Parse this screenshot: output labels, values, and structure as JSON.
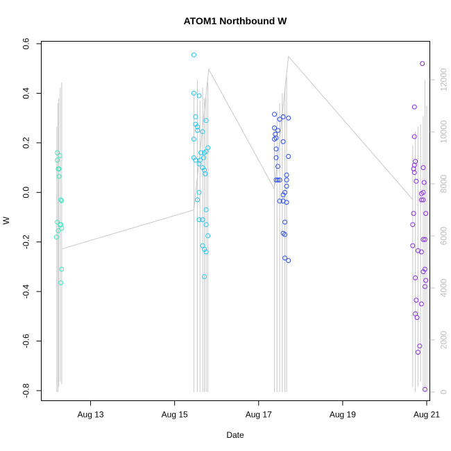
{
  "chart_data": {
    "type": "scatter",
    "title": "ATOM1 Northbound W",
    "xlabel": "Date",
    "ylabel": "W",
    "xlim": [
      "2022-08-12 00:00",
      "2022-08-21 00:00"
    ],
    "ylim": [
      -0.8,
      0.6
    ],
    "x_ticks": [
      "Aug 13",
      "Aug 15",
      "Aug 17",
      "Aug 19",
      "Aug 21"
    ],
    "x_tick_positions": [
      "2022-08-13 00:00",
      "2022-08-15 00:00",
      "2022-08-17 00:00",
      "2022-08-19 00:00",
      "2022-08-21 00:00"
    ],
    "y_ticks": [
      "-0.8",
      "-0.6",
      "-0.4",
      "-0.2",
      "0.0",
      "0.2",
      "0.4",
      "0.6"
    ],
    "y_tick_values": [
      -0.8,
      -0.6,
      -0.4,
      -0.2,
      0.0,
      0.2,
      0.4,
      0.6
    ],
    "y2_ticks": [
      "0",
      "2000",
      "4000",
      "6000",
      "8000",
      "10000",
      "12000"
    ],
    "y2_tick_values": [
      0,
      2000,
      4000,
      6000,
      8000,
      10000,
      12000
    ],
    "y2lim": [
      0,
      12000
    ],
    "grid": false,
    "colors": {
      "line": "#c8c8c8",
      "axis": "#000000",
      "right_axis": "#bdbdbd",
      "group1": "#3fe8c0",
      "group2": "#22c6ee",
      "group3": "#2a4df0",
      "group4": "#8a2be2"
    },
    "series": [
      {
        "color": "#3fe8c0",
        "points": [
          {
            "x": "2022-08-12 05:00",
            "y": 0.16
          },
          {
            "x": "2022-08-12 05:00",
            "y": 0.13
          },
          {
            "x": "2022-08-12 05:30",
            "y": 0.095
          },
          {
            "x": "2022-08-12 06:00",
            "y": 0.065
          },
          {
            "x": "2022-08-12 05:00",
            "y": -0.12
          },
          {
            "x": "2022-08-12 06:30",
            "y": -0.13
          },
          {
            "x": "2022-08-12 05:30",
            "y": -0.155
          },
          {
            "x": "2022-08-12 04:30",
            "y": -0.18
          },
          {
            "x": "2022-08-12 06:00",
            "y": 0.095
          },
          {
            "x": "2022-08-12 06:30",
            "y": 0.148
          },
          {
            "x": "2022-08-12 07:00",
            "y": -0.03
          },
          {
            "x": "2022-08-12 07:30",
            "y": -0.034
          },
          {
            "x": "2022-08-12 07:00",
            "y": -0.13
          },
          {
            "x": "2022-08-12 07:30",
            "y": -0.145
          },
          {
            "x": "2022-08-12 07:30",
            "y": -0.31
          },
          {
            "x": "2022-08-12 07:00",
            "y": -0.365
          }
        ]
      },
      {
        "color": "#22c6ee",
        "points": [
          {
            "x": "2022-08-15 11:00",
            "y": 0.555
          },
          {
            "x": "2022-08-15 11:00",
            "y": 0.4
          },
          {
            "x": "2022-08-15 14:00",
            "y": 0.39
          },
          {
            "x": "2022-08-15 12:00",
            "y": 0.305
          },
          {
            "x": "2022-08-15 12:00",
            "y": 0.275
          },
          {
            "x": "2022-08-15 13:00",
            "y": 0.265
          },
          {
            "x": "2022-08-15 13:00",
            "y": 0.25
          },
          {
            "x": "2022-08-15 16:00",
            "y": 0.245
          },
          {
            "x": "2022-08-15 18:00",
            "y": 0.29
          },
          {
            "x": "2022-08-15 11:00",
            "y": 0.215
          },
          {
            "x": "2022-08-15 15:00",
            "y": 0.16
          },
          {
            "x": "2022-08-15 17:00",
            "y": 0.16
          },
          {
            "x": "2022-08-15 18:00",
            "y": 0.165
          },
          {
            "x": "2022-08-15 19:00",
            "y": 0.18
          },
          {
            "x": "2022-08-15 11:00",
            "y": 0.14
          },
          {
            "x": "2022-08-15 12:00",
            "y": 0.13
          },
          {
            "x": "2022-08-15 14:30",
            "y": 0.13
          },
          {
            "x": "2022-08-15 16:30",
            "y": 0.14
          },
          {
            "x": "2022-08-15 14:00",
            "y": 0.115
          },
          {
            "x": "2022-08-15 16:00",
            "y": 0.1
          },
          {
            "x": "2022-08-15 17:00",
            "y": 0.09
          },
          {
            "x": "2022-08-15 17:30",
            "y": 0.075
          },
          {
            "x": "2022-08-15 14:00",
            "y": 0.0
          },
          {
            "x": "2022-08-15 13:00",
            "y": -0.03
          },
          {
            "x": "2022-08-15 18:00",
            "y": -0.07
          },
          {
            "x": "2022-08-15 14:00",
            "y": -0.11
          },
          {
            "x": "2022-08-15 16:00",
            "y": -0.11
          },
          {
            "x": "2022-08-15 18:00",
            "y": -0.13
          },
          {
            "x": "2022-08-15 19:00",
            "y": -0.175
          },
          {
            "x": "2022-08-15 16:00",
            "y": -0.215
          },
          {
            "x": "2022-08-15 17:00",
            "y": -0.23
          },
          {
            "x": "2022-08-15 18:00",
            "y": -0.24
          },
          {
            "x": "2022-08-15 17:00",
            "y": -0.34
          }
        ]
      },
      {
        "color": "#2a4df0",
        "points": [
          {
            "x": "2022-08-17 09:00",
            "y": 0.315
          },
          {
            "x": "2022-08-17 14:00",
            "y": 0.305
          },
          {
            "x": "2022-08-17 17:00",
            "y": 0.3
          },
          {
            "x": "2022-08-17 12:00",
            "y": 0.295
          },
          {
            "x": "2022-08-17 09:00",
            "y": 0.26
          },
          {
            "x": "2022-08-17 11:00",
            "y": 0.25
          },
          {
            "x": "2022-08-17 09:30",
            "y": 0.235
          },
          {
            "x": "2022-08-17 10:00",
            "y": 0.22
          },
          {
            "x": "2022-08-17 09:00",
            "y": 0.215
          },
          {
            "x": "2022-08-17 14:00",
            "y": 0.205
          },
          {
            "x": "2022-08-17 10:00",
            "y": 0.175
          },
          {
            "x": "2022-08-17 17:00",
            "y": 0.145
          },
          {
            "x": "2022-08-17 10:00",
            "y": 0.14
          },
          {
            "x": "2022-08-17 11:00",
            "y": 0.105
          },
          {
            "x": "2022-08-17 16:00",
            "y": 0.07
          },
          {
            "x": "2022-08-17 10:00",
            "y": 0.05
          },
          {
            "x": "2022-08-17 11:00",
            "y": 0.05
          },
          {
            "x": "2022-08-17 12:00",
            "y": 0.05
          },
          {
            "x": "2022-08-17 16:00",
            "y": 0.05
          },
          {
            "x": "2022-08-17 16:00",
            "y": 0.025
          },
          {
            "x": "2022-08-17 15:00",
            "y": 0.0
          },
          {
            "x": "2022-08-17 14:00",
            "y": -0.01
          },
          {
            "x": "2022-08-17 12:00",
            "y": -0.035
          },
          {
            "x": "2022-08-17 14:00",
            "y": -0.035
          },
          {
            "x": "2022-08-17 16:00",
            "y": -0.04
          },
          {
            "x": "2022-08-17 15:00",
            "y": -0.12
          },
          {
            "x": "2022-08-17 14:00",
            "y": -0.165
          },
          {
            "x": "2022-08-17 15:00",
            "y": -0.17
          },
          {
            "x": "2022-08-17 15:00",
            "y": -0.265
          },
          {
            "x": "2022-08-17 17:00",
            "y": -0.275
          }
        ]
      },
      {
        "color": "#8a2be2",
        "points": [
          {
            "x": "2022-08-20 17:00",
            "y": 0.345
          },
          {
            "x": "2022-08-20 17:00",
            "y": 0.225
          },
          {
            "x": "2022-08-20 17:30",
            "y": 0.125
          },
          {
            "x": "2022-08-20 17:00",
            "y": 0.11
          },
          {
            "x": "2022-08-20 16:30",
            "y": 0.095
          },
          {
            "x": "2022-08-20 17:00",
            "y": 0.08
          },
          {
            "x": "2022-08-20 18:00",
            "y": 0.045
          },
          {
            "x": "2022-08-20 22:00",
            "y": 0.1
          },
          {
            "x": "2022-08-20 22:30",
            "y": 0.04
          },
          {
            "x": "2022-08-20 22:00",
            "y": 0.0
          },
          {
            "x": "2022-08-20 21:00",
            "y": -0.005
          },
          {
            "x": "2022-08-20 21:00",
            "y": -0.03
          },
          {
            "x": "2022-08-20 22:00",
            "y": -0.03
          },
          {
            "x": "2022-08-20 16:30",
            "y": -0.085
          },
          {
            "x": "2022-08-20 16:00",
            "y": -0.13
          },
          {
            "x": "2022-08-20 22:00",
            "y": -0.19
          },
          {
            "x": "2022-08-20 23:30",
            "y": -0.085
          },
          {
            "x": "2022-08-20 16:00",
            "y": -0.215
          },
          {
            "x": "2022-08-20 19:00",
            "y": -0.235
          },
          {
            "x": "2022-08-20 21:00",
            "y": -0.24
          },
          {
            "x": "2022-08-20 23:00",
            "y": -0.19
          },
          {
            "x": "2022-08-20 22:00",
            "y": -0.32
          },
          {
            "x": "2022-08-20 23:00",
            "y": -0.31
          },
          {
            "x": "2022-08-20 23:30",
            "y": -0.355
          },
          {
            "x": "2022-08-20 17:30",
            "y": -0.345
          },
          {
            "x": "2022-08-20 23:00",
            "y": -0.38
          },
          {
            "x": "2022-08-20 18:00",
            "y": -0.435
          },
          {
            "x": "2022-08-20 21:00",
            "y": -0.45
          },
          {
            "x": "2022-08-20 17:30",
            "y": -0.49
          },
          {
            "x": "2022-08-20 18:30",
            "y": -0.505
          },
          {
            "x": "2022-08-20 20:00",
            "y": -0.62
          },
          {
            "x": "2022-08-20 19:00",
            "y": -0.645
          },
          {
            "x": "2022-08-20 21:30",
            "y": 0.52
          },
          {
            "x": "2022-08-20 23:00",
            "y": -0.795
          }
        ]
      }
    ],
    "secondary_line": {
      "color": "#c8c8c8",
      "axis": "right",
      "segments": [
        {
          "x": "2022-08-12 04:40",
          "y": [
            0,
            10200
          ]
        },
        {
          "x": "2022-08-12 05:20",
          "y": [
            0,
            11100
          ]
        },
        {
          "x": "2022-08-12 05:50",
          "y": [
            200,
            11300
          ]
        },
        {
          "x": "2022-08-12 06:40",
          "y": [
            400,
            11700
          ]
        },
        {
          "x": "2022-08-12 07:30",
          "y": [
            300,
            11900
          ]
        },
        {
          "x": "2022-08-15 11:00",
          "y": [
            0,
            11500
          ]
        },
        {
          "x": "2022-08-15 13:00",
          "y": [
            0,
            12000
          ]
        },
        {
          "x": "2022-08-15 14:30",
          "y": [
            0,
            11200
          ]
        },
        {
          "x": "2022-08-15 16:00",
          "y": [
            0,
            11700
          ]
        },
        {
          "x": "2022-08-15 17:00",
          "y": [
            0,
            11300
          ]
        },
        {
          "x": "2022-08-15 18:00",
          "y": [
            0,
            11300
          ]
        },
        {
          "x": "2022-08-15 19:00",
          "y": [
            0,
            11900
          ]
        },
        {
          "x": "2022-08-17 09:00",
          "y": [
            0,
            10200
          ]
        },
        {
          "x": "2022-08-17 10:30",
          "y": [
            0,
            10800
          ]
        },
        {
          "x": "2022-08-17 12:00",
          "y": [
            0,
            11100
          ]
        },
        {
          "x": "2022-08-17 13:30",
          "y": [
            0,
            11500
          ]
        },
        {
          "x": "2022-08-17 15:00",
          "y": [
            0,
            11700
          ]
        },
        {
          "x": "2022-08-17 16:00",
          "y": [
            0,
            12100
          ]
        },
        {
          "x": "2022-08-20 16:00",
          "y": [
            200,
            9500
          ]
        },
        {
          "x": "2022-08-20 17:30",
          "y": [
            0,
            10000
          ]
        },
        {
          "x": "2022-08-20 19:00",
          "y": [
            200,
            10200
          ]
        },
        {
          "x": "2022-08-20 20:30",
          "y": [
            400,
            10300
          ]
        },
        {
          "x": "2022-08-20 22:00",
          "y": [
            0,
            10600
          ]
        },
        {
          "x": "2022-08-20 23:00",
          "y": [
            0,
            12000
          ]
        },
        {
          "x": "2022-08-21 00:00",
          "y": [
            0,
            11000
          ]
        }
      ],
      "connector": [
        {
          "x": "2022-08-12 07:30",
          "y": 5500
        },
        {
          "x": "2022-08-15 11:00",
          "y": 7000
        },
        {
          "x": "2022-08-15 19:30",
          "y": 12400
        },
        {
          "x": "2022-08-17 09:00",
          "y": 7800
        },
        {
          "x": "2022-08-17 17:00",
          "y": 12900
        },
        {
          "x": "2022-08-20 16:00",
          "y": 7400
        }
      ]
    }
  }
}
